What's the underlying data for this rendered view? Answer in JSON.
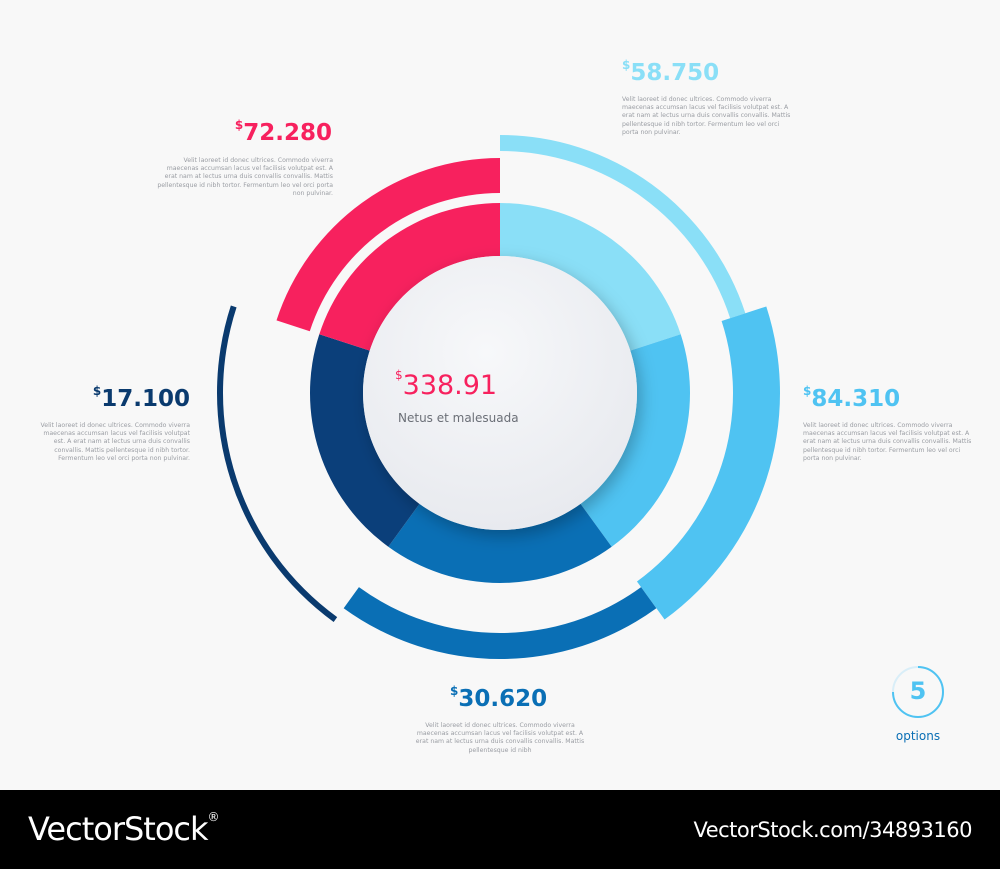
{
  "center": {
    "currency": "$",
    "value": "338.91",
    "label": "Netus et malesuada"
  },
  "options": [
    {
      "currency": "$",
      "value": "58.750",
      "text": "Velit laoreet id donec ultrices. Commodo viverra maecenas accumsan lacus vel facilisis volutpat est. A erat nam at lectus urna duis convallis convallis. Mattis pellentesque id nibh tortor. Fermentum leo vel orci porta non pulvinar."
    },
    {
      "currency": "$",
      "value": "84.310",
      "text": "Velit laoreet id donec ultrices. Commodo viverra maecenas accumsan lacus vel facilisis volutpat est. A erat nam at lectus urna duis convallis convallis. Mattis pellentesque id nibh tortor. Fermentum leo vel orci porta non pulvinar."
    },
    {
      "currency": "$",
      "value": "30.620",
      "text": "Velit laoreet id donec ultrices. Commodo viverra maecenas accumsan lacus vel facilisis volutpat est. A erat nam at lectus urna duis convallis convallis. Mattis pellentesque id nibh"
    },
    {
      "currency": "$",
      "value": "17.100",
      "text": "Velit laoreet id donec ultrices. Commodo viverra maecenas accumsan lacus vel facilisis volutpat est. A erat nam at lectus urna duis convallis convallis. Mattis pellentesque id nibh tortor. Fermentum leo vel orci porta non pulvinar."
    },
    {
      "currency": "$",
      "value": "72.280",
      "text": "Velit laoreet id donec ultrices. Commodo viverra maecenas accumsan lacus vel facilisis volutpat est. A erat nam at lectus urna duis convallis convallis. Mattis pellentesque id nibh tortor. Fermentum leo vel orci porta non pulvinar."
    }
  ],
  "badge": {
    "count": "5",
    "label": "options"
  },
  "footer": {
    "brand": "VectorStock",
    "registered": "®",
    "url": "VectorStock.com/34893160"
  }
}
